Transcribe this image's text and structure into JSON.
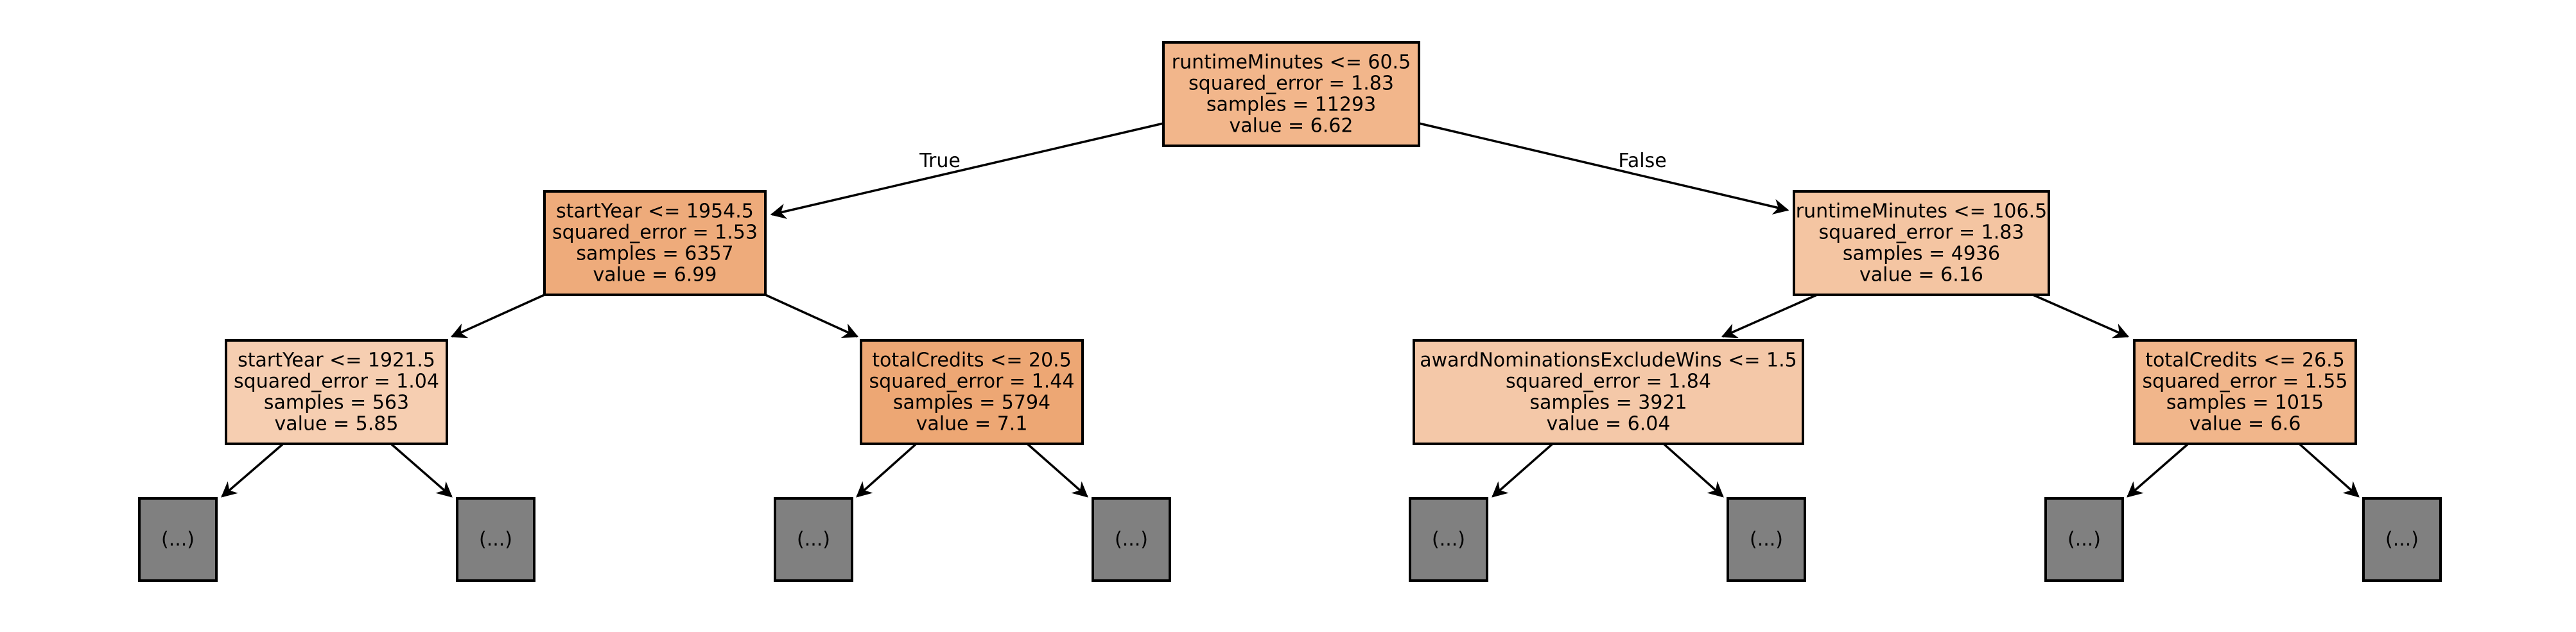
{
  "diagram": {
    "nodes": [
      {
        "id": "n0",
        "lines": [
          "runtimeMinutes <= 60.5",
          "squared_error = 1.83",
          "samples = 11293",
          "value = 6.62"
        ],
        "fill": "#f2b68b"
      },
      {
        "id": "n1",
        "lines": [
          "startYear <= 1954.5",
          "squared_error = 1.53",
          "samples = 6357",
          "value = 6.99"
        ],
        "fill": "#eeab7b"
      },
      {
        "id": "n2",
        "lines": [
          "runtimeMinutes <= 106.5",
          "squared_error = 1.83",
          "samples = 4936",
          "value = 6.16"
        ],
        "fill": "#f4c5a2"
      },
      {
        "id": "n3",
        "lines": [
          "startYear <= 1921.5",
          "squared_error = 1.04",
          "samples = 563",
          "value = 5.85"
        ],
        "fill": "#f6ceb1"
      },
      {
        "id": "n4",
        "lines": [
          "totalCredits <= 20.5",
          "squared_error = 1.44",
          "samples = 5794",
          "value = 7.1"
        ],
        "fill": "#eda774"
      },
      {
        "id": "n5",
        "lines": [
          "awardNominationsExcludeWins <= 1.5",
          "squared_error = 1.84",
          "samples = 3921",
          "value = 6.04"
        ],
        "fill": "#f4c8a8"
      },
      {
        "id": "n6",
        "lines": [
          "totalCredits <= 26.5",
          "squared_error = 1.55",
          "samples = 1015",
          "value = 6.6"
        ],
        "fill": "#f1b68b"
      },
      {
        "id": "t0",
        "lines": [
          "(...)"
        ],
        "fill": "#808080"
      },
      {
        "id": "t1",
        "lines": [
          "(...)"
        ],
        "fill": "#808080"
      },
      {
        "id": "t2",
        "lines": [
          "(...)"
        ],
        "fill": "#808080"
      },
      {
        "id": "t3",
        "lines": [
          "(...)"
        ],
        "fill": "#808080"
      },
      {
        "id": "t4",
        "lines": [
          "(...)"
        ],
        "fill": "#808080"
      },
      {
        "id": "t5",
        "lines": [
          "(...)"
        ],
        "fill": "#808080"
      },
      {
        "id": "t6",
        "lines": [
          "(...)"
        ],
        "fill": "#808080"
      },
      {
        "id": "t7",
        "lines": [
          "(...)"
        ],
        "fill": "#808080"
      }
    ],
    "edges": [
      {
        "from": "n0",
        "to": "n1",
        "label": "True"
      },
      {
        "from": "n0",
        "to": "n2",
        "label": "False"
      },
      {
        "from": "n1",
        "to": "n3",
        "label": ""
      },
      {
        "from": "n1",
        "to": "n4",
        "label": ""
      },
      {
        "from": "n2",
        "to": "n5",
        "label": ""
      },
      {
        "from": "n2",
        "to": "n6",
        "label": ""
      },
      {
        "from": "n3",
        "to": "t0",
        "label": ""
      },
      {
        "from": "n3",
        "to": "t1",
        "label": ""
      },
      {
        "from": "n4",
        "to": "t2",
        "label": ""
      },
      {
        "from": "n4",
        "to": "t3",
        "label": ""
      },
      {
        "from": "n5",
        "to": "t4",
        "label": ""
      },
      {
        "from": "n5",
        "to": "t5",
        "label": ""
      },
      {
        "from": "n6",
        "to": "t6",
        "label": ""
      },
      {
        "from": "n6",
        "to": "t7",
        "label": ""
      }
    ]
  }
}
